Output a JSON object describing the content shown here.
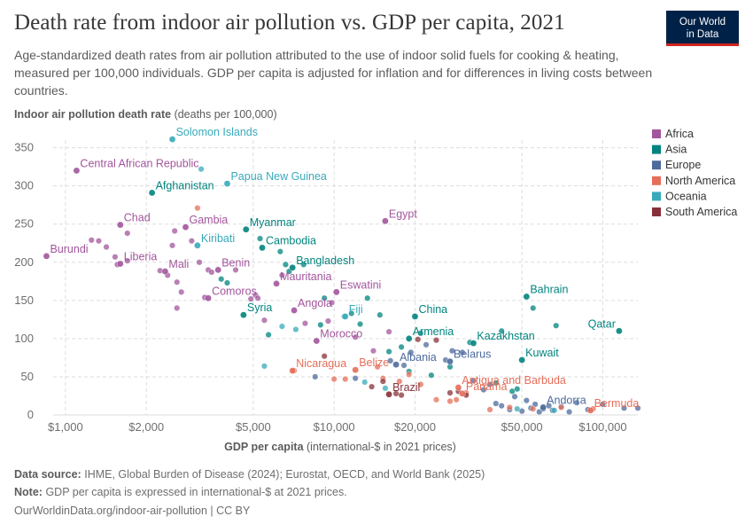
{
  "header": {
    "title": "Death rate from indoor air pollution vs. GDP per capita, 2021",
    "subtitle": "Age-standardized death rates from air pollution attributed to the use of indoor solid fuels for cooking & heating, measured per 100,000 individuals. GDP per capita is adjusted for inflation and for differences in living costs between countries."
  },
  "logo": {
    "line1": "Our World",
    "line2": "in Data"
  },
  "footer": {
    "source_label": "Data source:",
    "source_text": "IHME, Global Burden of Disease (2024); Eurostat, OECD, and World Bank (2025)",
    "note_label": "Note:",
    "note_text": "GDP per capita is expressed in international-$ at 2021 prices.",
    "url": "OurWorldinData.org/indoor-air-pollution | CC BY"
  },
  "chart_data": {
    "type": "scatter",
    "ylabel_bold": "Indoor air pollution death rate",
    "ylabel_unit": " (deaths per 100,000)",
    "xlabel_bold": "GDP per capita",
    "xlabel_unit": " (international-$ in 2021 prices)",
    "x_scale": "log",
    "xlim": [
      900,
      135000
    ],
    "ylim": [
      0,
      360
    ],
    "grid": true,
    "xticks": [
      {
        "value": 1000,
        "label": "$1,000"
      },
      {
        "value": 2000,
        "label": "$2,000"
      },
      {
        "value": 5000,
        "label": "$5,000"
      },
      {
        "value": 10000,
        "label": "$10,000"
      },
      {
        "value": 20000,
        "label": "$20,000"
      },
      {
        "value": 50000,
        "label": "$50,000"
      },
      {
        "value": 100000,
        "label": "$100,000"
      }
    ],
    "yticks": [
      0,
      50,
      100,
      150,
      200,
      250,
      300,
      350
    ],
    "legend_position": "right",
    "series": [
      {
        "name": "Africa",
        "color": "#a2559c"
      },
      {
        "name": "Asia",
        "color": "#00847e"
      },
      {
        "name": "Europe",
        "color": "#4c6a9c"
      },
      {
        "name": "North America",
        "color": "#e56e5a"
      },
      {
        "name": "Oceania",
        "color": "#38aaba"
      },
      {
        "name": "South America",
        "color": "#883039"
      }
    ],
    "labeled_points": [
      {
        "label": "Solomon Islands",
        "x": 2500,
        "y": 361,
        "series": "Oceania"
      },
      {
        "label": "Central African Republic",
        "x": 1100,
        "y": 320,
        "series": "Africa"
      },
      {
        "label": "Papua New Guinea",
        "x": 4000,
        "y": 303,
        "series": "Oceania"
      },
      {
        "label": "Afghanistan",
        "x": 2100,
        "y": 291,
        "series": "Asia"
      },
      {
        "label": "Chad",
        "x": 1600,
        "y": 249,
        "series": "Africa"
      },
      {
        "label": "Gambia",
        "x": 2800,
        "y": 246,
        "series": "Africa"
      },
      {
        "label": "Myanmar",
        "x": 4700,
        "y": 243,
        "series": "Asia"
      },
      {
        "label": "Egypt",
        "x": 15500,
        "y": 254,
        "series": "Africa"
      },
      {
        "label": "Kiribati",
        "x": 3100,
        "y": 222,
        "series": "Oceania"
      },
      {
        "label": "Cambodia",
        "x": 5400,
        "y": 219,
        "series": "Asia"
      },
      {
        "label": "Burundi",
        "x": 850,
        "y": 208,
        "series": "Africa"
      },
      {
        "label": "Liberia",
        "x": 1600,
        "y": 198,
        "series": "Africa"
      },
      {
        "label": "Bangladesh",
        "x": 7000,
        "y": 193,
        "series": "Asia"
      },
      {
        "label": "Benin",
        "x": 3700,
        "y": 190,
        "series": "Africa"
      },
      {
        "label": "Mali",
        "x": 2350,
        "y": 188,
        "series": "Africa"
      },
      {
        "label": "Mauritania",
        "x": 6100,
        "y": 172,
        "series": "Africa"
      },
      {
        "label": "Eswatini",
        "x": 10200,
        "y": 161,
        "series": "Africa"
      },
      {
        "label": "Comoros",
        "x": 3400,
        "y": 153,
        "series": "Africa"
      },
      {
        "label": "Bahrain",
        "x": 52000,
        "y": 155,
        "series": "Asia"
      },
      {
        "label": "Angola",
        "x": 7100,
        "y": 137,
        "series": "Africa"
      },
      {
        "label": "Syria",
        "x": 4600,
        "y": 131,
        "series": "Asia"
      },
      {
        "label": "Fiji",
        "x": 11000,
        "y": 129,
        "series": "Oceania"
      },
      {
        "label": "China",
        "x": 20000,
        "y": 129,
        "series": "Asia"
      },
      {
        "label": "Qatar",
        "x": 115000,
        "y": 110,
        "series": "Asia"
      },
      {
        "label": "Morocco",
        "x": 8600,
        "y": 97,
        "series": "Africa"
      },
      {
        "label": "Armenia",
        "x": 19000,
        "y": 100,
        "series": "Asia"
      },
      {
        "label": "Kazakhstan",
        "x": 33000,
        "y": 94,
        "series": "Asia"
      },
      {
        "label": "Kuwait",
        "x": 50000,
        "y": 72,
        "series": "Asia"
      },
      {
        "label": "Belarus",
        "x": 27000,
        "y": 70,
        "series": "Europe"
      },
      {
        "label": "Albania",
        "x": 17000,
        "y": 66,
        "series": "Europe"
      },
      {
        "label": "Nicaragua",
        "x": 7000,
        "y": 58,
        "series": "North America"
      },
      {
        "label": "Belize",
        "x": 12000,
        "y": 59,
        "series": "North America"
      },
      {
        "label": "Antigua and Barbuda",
        "x": 29000,
        "y": 36,
        "series": "North America"
      },
      {
        "label": "Brazil",
        "x": 16000,
        "y": 27,
        "series": "South America"
      },
      {
        "label": "Panama",
        "x": 30000,
        "y": 28,
        "series": "North America"
      },
      {
        "label": "Andorra",
        "x": 60000,
        "y": 10,
        "series": "Europe"
      },
      {
        "label": "Bermuda",
        "x": 90000,
        "y": 6,
        "series": "North America"
      }
    ],
    "points": [
      [
        1250,
        229,
        "Africa"
      ],
      [
        1330,
        228,
        "Africa"
      ],
      [
        1420,
        220,
        "Africa"
      ],
      [
        1530,
        207,
        "Africa"
      ],
      [
        1560,
        197,
        "Africa"
      ],
      [
        1700,
        202,
        "Africa"
      ],
      [
        1700,
        238,
        "Africa"
      ],
      [
        2250,
        189,
        "Africa"
      ],
      [
        2400,
        183,
        "Africa"
      ],
      [
        2500,
        222,
        "Africa"
      ],
      [
        2550,
        241,
        "Africa"
      ],
      [
        2600,
        174,
        "Africa"
      ],
      [
        2700,
        161,
        "Africa"
      ],
      [
        2950,
        228,
        "Africa"
      ],
      [
        3150,
        200,
        "Africa"
      ],
      [
        3400,
        190,
        "Africa"
      ],
      [
        3500,
        187,
        "Africa"
      ],
      [
        3300,
        154,
        "Africa"
      ],
      [
        4300,
        190,
        "Africa"
      ],
      [
        5100,
        157,
        "Africa"
      ],
      [
        5200,
        153,
        "Africa"
      ],
      [
        5500,
        124,
        "Africa"
      ],
      [
        6400,
        183,
        "Africa"
      ],
      [
        7800,
        120,
        "Africa"
      ],
      [
        9500,
        123,
        "Africa"
      ],
      [
        9800,
        147,
        "Africa"
      ],
      [
        12000,
        102,
        "Africa"
      ],
      [
        14000,
        84,
        "Africa"
      ],
      [
        16000,
        109,
        "Africa"
      ],
      [
        2600,
        140,
        "Africa"
      ],
      [
        4900,
        152,
        "Africa"
      ],
      [
        3800,
        178,
        "Asia"
      ],
      [
        4000,
        173,
        "Asia"
      ],
      [
        5700,
        105,
        "Asia"
      ],
      [
        6300,
        214,
        "Asia"
      ],
      [
        6600,
        197,
        "Asia"
      ],
      [
        6800,
        188,
        "Asia"
      ],
      [
        7700,
        197,
        "Asia"
      ],
      [
        8900,
        118,
        "Asia"
      ],
      [
        9200,
        153,
        "Asia"
      ],
      [
        11600,
        133,
        "Asia"
      ],
      [
        12500,
        119,
        "Asia"
      ],
      [
        13300,
        153,
        "Asia"
      ],
      [
        14800,
        131,
        "Asia"
      ],
      [
        16000,
        83,
        "Asia"
      ],
      [
        17800,
        89,
        "Asia"
      ],
      [
        19000,
        57,
        "Asia"
      ],
      [
        21000,
        107,
        "Asia"
      ],
      [
        23000,
        52,
        "Asia"
      ],
      [
        27000,
        63,
        "Asia"
      ],
      [
        32000,
        95,
        "Asia"
      ],
      [
        40000,
        42,
        "Asia"
      ],
      [
        42000,
        110,
        "Asia"
      ],
      [
        46000,
        31,
        "Asia"
      ],
      [
        48000,
        34,
        "Asia"
      ],
      [
        55000,
        140,
        "Asia"
      ],
      [
        67000,
        117,
        "Asia"
      ],
      [
        5300,
        231,
        "Asia"
      ],
      [
        8500,
        50,
        "Europe"
      ],
      [
        12000,
        48,
        "Europe"
      ],
      [
        16200,
        71,
        "Europe"
      ],
      [
        18200,
        65,
        "Europe"
      ],
      [
        19300,
        82,
        "Europe"
      ],
      [
        22000,
        92,
        "Europe"
      ],
      [
        26000,
        72,
        "Europe"
      ],
      [
        27500,
        84,
        "Europe"
      ],
      [
        30000,
        82,
        "Europe"
      ],
      [
        33000,
        45,
        "Europe"
      ],
      [
        36000,
        33,
        "Europe"
      ],
      [
        38000,
        40,
        "Europe"
      ],
      [
        40000,
        15,
        "Europe"
      ],
      [
        42000,
        12,
        "Europe"
      ],
      [
        45000,
        7,
        "Europe"
      ],
      [
        47000,
        24,
        "Europe"
      ],
      [
        50000,
        5,
        "Europe"
      ],
      [
        52000,
        19,
        "Europe"
      ],
      [
        54000,
        9,
        "Europe"
      ],
      [
        56000,
        14,
        "Europe"
      ],
      [
        58000,
        4,
        "Europe"
      ],
      [
        60000,
        8,
        "Europe"
      ],
      [
        63000,
        12,
        "Europe"
      ],
      [
        65000,
        6,
        "Europe"
      ],
      [
        70000,
        11,
        "Europe"
      ],
      [
        75000,
        4,
        "Europe"
      ],
      [
        80000,
        16,
        "Europe"
      ],
      [
        88000,
        7,
        "Europe"
      ],
      [
        100000,
        14,
        "Europe"
      ],
      [
        120000,
        9,
        "Europe"
      ],
      [
        135000,
        9,
        "Europe"
      ],
      [
        3100,
        271,
        "North America"
      ],
      [
        7100,
        58,
        "North America"
      ],
      [
        10000,
        47,
        "North America"
      ],
      [
        11000,
        47,
        "North America"
      ],
      [
        14500,
        63,
        "North America"
      ],
      [
        15200,
        48,
        "North America"
      ],
      [
        17500,
        44,
        "North America"
      ],
      [
        19000,
        53,
        "North America"
      ],
      [
        21000,
        40,
        "North America"
      ],
      [
        24000,
        20,
        "North America"
      ],
      [
        27000,
        18,
        "North America"
      ],
      [
        28500,
        20,
        "North America"
      ],
      [
        31000,
        29,
        "North America"
      ],
      [
        38000,
        7,
        "North America"
      ],
      [
        45000,
        10,
        "North America"
      ],
      [
        55000,
        8,
        "North America"
      ],
      [
        70000,
        10,
        "North America"
      ],
      [
        92000,
        8,
        "North America"
      ],
      [
        3200,
        322,
        "Oceania"
      ],
      [
        5500,
        64,
        "Oceania"
      ],
      [
        6400,
        116,
        "Oceania"
      ],
      [
        7200,
        112,
        "Oceania"
      ],
      [
        10900,
        129,
        "Oceania"
      ],
      [
        13000,
        43,
        "Oceania"
      ],
      [
        15500,
        35,
        "Oceania"
      ],
      [
        48000,
        8,
        "Oceania"
      ],
      [
        66000,
        6,
        "Oceania"
      ],
      [
        9200,
        77,
        "South America"
      ],
      [
        13800,
        37,
        "South America"
      ],
      [
        15200,
        44,
        "South America"
      ],
      [
        17000,
        28,
        "South America"
      ],
      [
        17800,
        26,
        "South America"
      ],
      [
        20500,
        99,
        "South America"
      ],
      [
        24000,
        98,
        "South America"
      ],
      [
        27000,
        29,
        "South America"
      ],
      [
        29000,
        31,
        "South America"
      ],
      [
        31000,
        26,
        "South America"
      ]
    ]
  }
}
